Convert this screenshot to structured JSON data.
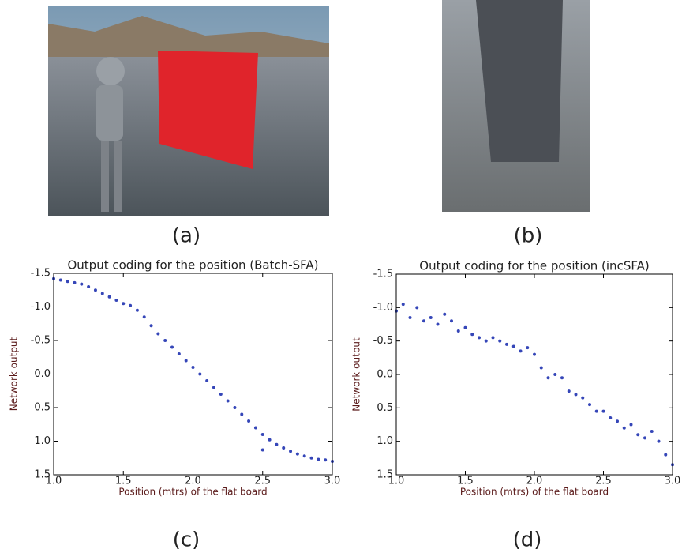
{
  "figure": {
    "captions": [
      "(a)",
      "(b)",
      "(c)",
      "(d)"
    ]
  },
  "chart_data": [
    {
      "type": "scatter",
      "title": "Output coding for the position (Batch-SFA)",
      "xlabel": "Position (mtrs) of the flat board",
      "ylabel": "Network output",
      "color": "#3546b8",
      "x": [
        1.0,
        1.05,
        1.1,
        1.15,
        1.2,
        1.25,
        1.3,
        1.35,
        1.4,
        1.45,
        1.5,
        1.55,
        1.6,
        1.65,
        1.7,
        1.75,
        1.8,
        1.85,
        1.9,
        1.95,
        2.0,
        2.05,
        2.1,
        2.15,
        2.2,
        2.25,
        2.3,
        2.35,
        2.4,
        2.45,
        2.5,
        2.55,
        2.6,
        2.65,
        2.7,
        2.75,
        2.8,
        2.85,
        2.9,
        2.95,
        3.0,
        2.5
      ],
      "values": [
        -1.42,
        -1.4,
        -1.38,
        -1.36,
        -1.34,
        -1.3,
        -1.25,
        -1.2,
        -1.15,
        -1.1,
        -1.05,
        -1.02,
        -0.95,
        -0.85,
        -0.72,
        -0.6,
        -0.5,
        -0.4,
        -0.3,
        -0.2,
        -0.1,
        0.0,
        0.1,
        0.2,
        0.3,
        0.4,
        0.5,
        0.6,
        0.7,
        0.8,
        0.9,
        0.98,
        1.05,
        1.1,
        1.15,
        1.19,
        1.22,
        1.25,
        1.27,
        1.28,
        1.3,
        1.13
      ],
      "xlim": [
        1.0,
        3.0
      ],
      "ylim": [
        1.5,
        -1.5
      ],
      "xticks": [
        {
          "value": 1.0,
          "label": "1.0"
        },
        1.5,
        {
          "value": 2.0,
          "label": "2.0"
        },
        2.5,
        {
          "value": 3.0,
          "label": "3.0"
        }
      ],
      "yticks": [
        -1.5,
        {
          "value": -1.0,
          "label": "-1.0"
        },
        -0.5,
        {
          "value": 0.0,
          "label": "0.0"
        },
        0.5,
        {
          "value": 1.0,
          "label": "1.0"
        },
        1.5
      ]
    },
    {
      "type": "scatter",
      "title": "Output coding for the position (incSFA)",
      "xlabel": "Position (mtrs) of the flat board",
      "ylabel": "Network output",
      "color": "#3546b8",
      "x": [
        1.0,
        1.05,
        1.1,
        1.15,
        1.2,
        1.25,
        1.3,
        1.35,
        1.4,
        1.45,
        1.5,
        1.55,
        1.6,
        1.65,
        1.7,
        1.75,
        1.8,
        1.85,
        1.9,
        1.95,
        2.0,
        2.05,
        2.1,
        2.15,
        2.2,
        2.25,
        2.3,
        2.35,
        2.4,
        2.45,
        2.5,
        2.55,
        2.6,
        2.65,
        2.7,
        2.75,
        2.8,
        2.85,
        2.9,
        2.95,
        3.0
      ],
      "values": [
        -0.95,
        -1.05,
        -0.85,
        -1.0,
        -0.8,
        -0.85,
        -0.75,
        -0.9,
        -0.8,
        -0.65,
        -0.7,
        -0.6,
        -0.55,
        -0.5,
        -0.55,
        -0.5,
        -0.45,
        -0.42,
        -0.35,
        -0.4,
        -0.3,
        -0.1,
        0.05,
        0.0,
        0.05,
        0.25,
        0.3,
        0.35,
        0.45,
        0.55,
        0.55,
        0.65,
        0.7,
        0.8,
        0.75,
        0.9,
        0.95,
        0.85,
        1.0,
        1.2,
        1.35
      ],
      "xlim": [
        1.0,
        3.0
      ],
      "ylim": [
        1.5,
        -1.5
      ],
      "xticks": [
        {
          "value": 1.0,
          "label": "1.0"
        },
        1.5,
        {
          "value": 2.0,
          "label": "2.0"
        },
        2.5,
        {
          "value": 3.0,
          "label": "3.0"
        }
      ],
      "yticks": [
        -1.5,
        {
          "value": -1.0,
          "label": "-1.0"
        },
        -0.5,
        {
          "value": 0.0,
          "label": "0.0"
        },
        0.5,
        {
          "value": 1.0,
          "label": "1.0"
        },
        1.5
      ]
    }
  ]
}
